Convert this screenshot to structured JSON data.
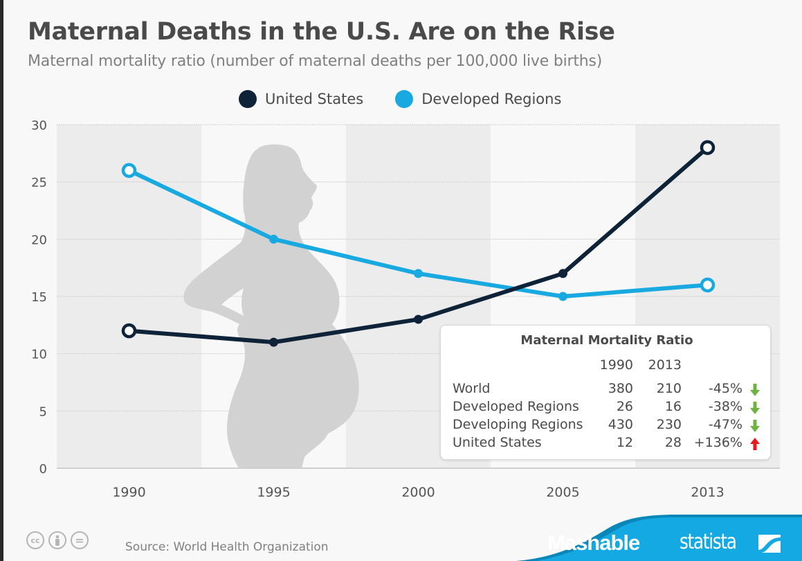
{
  "header": {
    "title": "Maternal Deaths in the U.S. Are on the Rise",
    "subtitle": "Maternal mortality ratio (number of maternal deaths per 100,000 live births)"
  },
  "colors": {
    "united_states": "#0e2238",
    "developed_regions": "#18a9e1",
    "band_shaded": "#ececec",
    "band_light": "#f8f8f8",
    "silhouette": "#d2d2d2",
    "arrow_down": "#6cb33f",
    "arrow_up": "#e8181c",
    "footer_blue": "#15a9e4",
    "footer_blue_dark": "#0a86b8"
  },
  "chart_data": {
    "type": "line",
    "title": "Maternal Deaths in the U.S. Are on the Rise",
    "subtitle": "Maternal mortality ratio (number of maternal deaths per 100,000 live births)",
    "xlabel": "",
    "ylabel": "",
    "x": [
      "1990",
      "1995",
      "2000",
      "2005",
      "2013"
    ],
    "yticks": [
      0,
      5,
      10,
      15,
      20,
      25,
      30
    ],
    "ylim": [
      0,
      30
    ],
    "grid": true,
    "legend_position": "top-center",
    "series": [
      {
        "name": "United States",
        "color": "#0e2238",
        "values": [
          12,
          11,
          13,
          17,
          28
        ]
      },
      {
        "name": "Developed Regions",
        "color": "#18a9e1",
        "values": [
          26,
          20,
          17,
          15,
          16
        ]
      }
    ]
  },
  "legend": [
    {
      "label": "United States",
      "color": "#0e2238"
    },
    {
      "label": "Developed Regions",
      "color": "#18a9e1"
    }
  ],
  "table": {
    "title": "Maternal Mortality Ratio",
    "columns": [
      "1990",
      "2013"
    ],
    "rows": [
      {
        "name": "World",
        "y1990": "380",
        "y2013": "210",
        "change": "-45%",
        "direction": "down"
      },
      {
        "name": "Developed Regions",
        "y1990": "26",
        "y2013": "16",
        "change": "-38%",
        "direction": "down"
      },
      {
        "name": "Developing Regions",
        "y1990": "430",
        "y2013": "230",
        "change": "-47%",
        "direction": "down"
      },
      {
        "name": "United States",
        "y1990": "12",
        "y2013": "28",
        "change": "+136%",
        "direction": "up"
      }
    ]
  },
  "footer": {
    "source": "Source: World Health Organization",
    "license_icons": [
      "cc-icon",
      "attribution-icon",
      "no-derivatives-icon"
    ],
    "cc_label": "cc",
    "nd_label": "=",
    "brand_primary": "Mashable",
    "brand_secondary": "statista"
  }
}
